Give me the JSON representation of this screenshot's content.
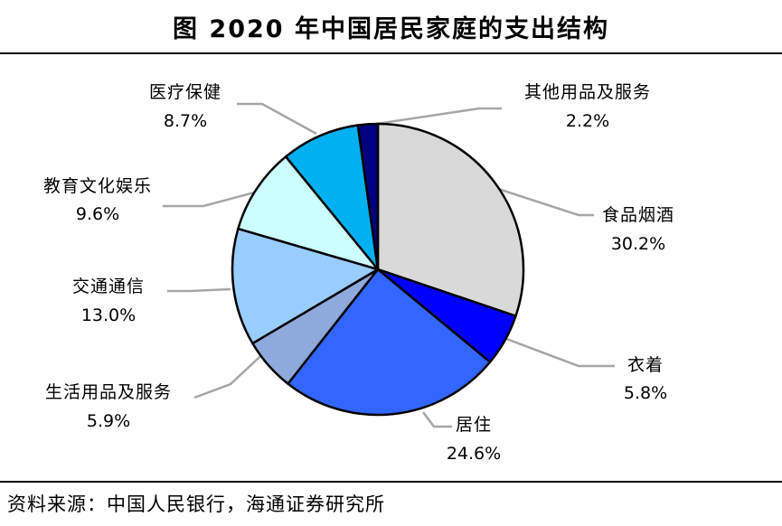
{
  "header": {
    "title": "图  2020 年中国居民家庭的支出结构"
  },
  "footer": {
    "source": "资料来源：中国人民银行，海通证券研究所"
  },
  "chart_data": {
    "type": "pie",
    "title": "图  2020 年中国居民家庭的支出结构",
    "start": "12 o'clock, clockwise",
    "slices": [
      {
        "label": "食品烟酒",
        "value": 30.2,
        "display": "30.2%",
        "color": "#d9d9d9"
      },
      {
        "label": "衣着",
        "value": 5.8,
        "display": "5.8%",
        "color": "#0000ff"
      },
      {
        "label": "居住",
        "value": 24.6,
        "display": "24.6%",
        "color": "#3366ff"
      },
      {
        "label": "生活用品及服务",
        "value": 5.9,
        "display": "5.9%",
        "color": "#8ea9db"
      },
      {
        "label": "交通通信",
        "value": 13.0,
        "display": "13.0%",
        "color": "#99ccff"
      },
      {
        "label": "教育文化娱乐",
        "value": 9.6,
        "display": "9.6%",
        "color": "#ccffff"
      },
      {
        "label": "医疗保健",
        "value": 8.7,
        "display": "8.7%",
        "color": "#00b0f0"
      },
      {
        "label": "其他用品及服务",
        "value": 2.2,
        "display": "2.2%",
        "color": "#000080"
      }
    ]
  }
}
